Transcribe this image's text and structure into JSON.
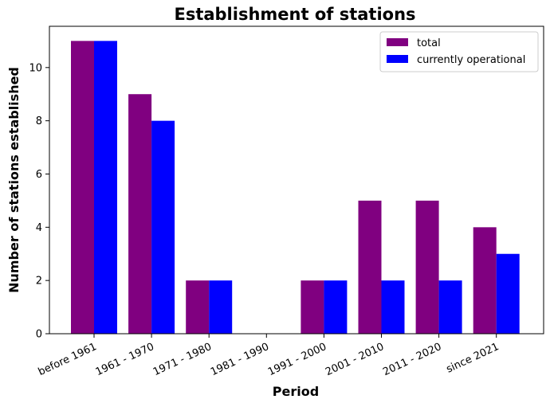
{
  "chart_data": {
    "type": "bar",
    "title": "Establishment of stations",
    "xlabel": "Period",
    "ylabel": "Number of stations established",
    "categories": [
      "before 1961",
      "1961 - 1970",
      "1971 - 1980",
      "1981 - 1990",
      "1991 - 2000",
      "2001 - 2010",
      "2011 - 2020",
      "since 2021"
    ],
    "series": [
      {
        "name": "total",
        "color": "#800080",
        "values": [
          11,
          9,
          2,
          0,
          2,
          5,
          5,
          4
        ]
      },
      {
        "name": "currently operational",
        "color": "#0000ff",
        "values": [
          11,
          8,
          2,
          0,
          2,
          2,
          2,
          3
        ]
      }
    ],
    "ylim": [
      0,
      11.55
    ],
    "yticks": [
      0,
      2,
      4,
      6,
      8,
      10
    ],
    "grid": false,
    "legend_position": "top-right",
    "xtick_rotation": -25
  }
}
